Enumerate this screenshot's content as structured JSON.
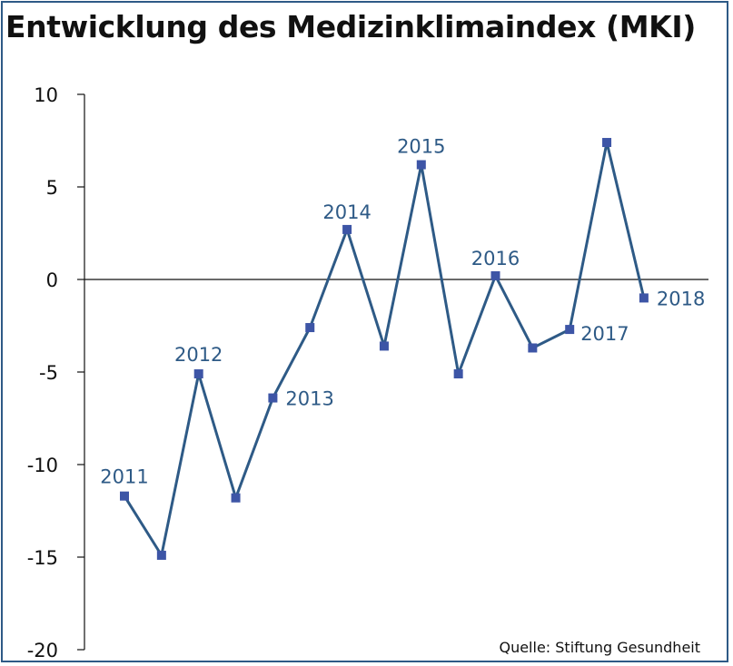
{
  "title": "Entwicklung des Medizinklimaindex (MKI)",
  "source": "Quelle: Stiftung Gesundheit",
  "colors": {
    "line": "#2e5a86",
    "marker": "#3d55a6",
    "frame": "#2e5a86",
    "axis": "#111111"
  },
  "chart_data": {
    "type": "line",
    "title": "Entwicklung des Medizinklimaindex (MKI)",
    "xlabel": "",
    "ylabel": "",
    "ylim": [
      -20,
      10
    ],
    "yticks": [
      10,
      5,
      0,
      -5,
      -10,
      -15,
      -20
    ],
    "grid": false,
    "legend": "none",
    "series": [
      {
        "values": [
          -11.7,
          -14.9,
          -5.1,
          -11.8,
          -6.4,
          -2.6,
          2.7,
          -3.6,
          6.2,
          -5.1,
          0.2,
          -3.7,
          -2.7,
          7.4,
          -1.0
        ]
      }
    ],
    "annotations": [
      {
        "text": "2011",
        "index": 0
      },
      {
        "text": "2012",
        "index": 2
      },
      {
        "text": "2013",
        "index": 4
      },
      {
        "text": "2014",
        "index": 6
      },
      {
        "text": "2015",
        "index": 8
      },
      {
        "text": "2016",
        "index": 10
      },
      {
        "text": "2017",
        "index": 12
      },
      {
        "text": "2018",
        "index": 14
      }
    ]
  }
}
